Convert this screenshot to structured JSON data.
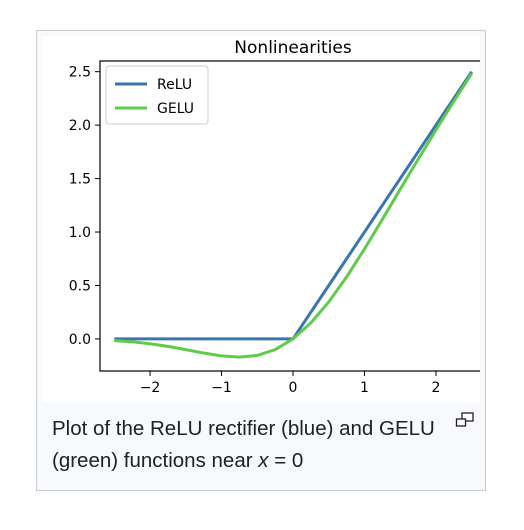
{
  "chart_data": {
    "type": "line",
    "title": "Nonlinearities",
    "xlabel": "",
    "ylabel": "",
    "xlim": [
      -2.7,
      2.7
    ],
    "ylim": [
      -0.3,
      2.6
    ],
    "xticks": [
      -2,
      -1,
      0,
      1,
      2
    ],
    "xtick_labels": [
      "−2",
      "−1",
      "0",
      "1",
      "2"
    ],
    "yticks": [
      0.0,
      0.5,
      1.0,
      1.5,
      2.0,
      2.5
    ],
    "ytick_labels": [
      "0.0",
      "0.5",
      "1.0",
      "1.5",
      "2.0",
      "2.5"
    ],
    "grid": false,
    "legend_position": "top-left",
    "series": [
      {
        "name": "ReLU",
        "color": "#3a75ad",
        "x": [
          -2.5,
          -2.0,
          -1.5,
          -1.0,
          -0.75,
          -0.5,
          -0.25,
          0.0,
          0.25,
          0.5,
          0.75,
          1.0,
          1.5,
          2.0,
          2.5
        ],
        "y": [
          0.0,
          0.0,
          0.0,
          0.0,
          0.0,
          0.0,
          0.0,
          0.0,
          0.25,
          0.5,
          0.75,
          1.0,
          1.5,
          2.0,
          2.5
        ]
      },
      {
        "name": "GELU",
        "color": "#5ecc48",
        "x": [
          -2.5,
          -2.25,
          -2.0,
          -1.75,
          -1.5,
          -1.25,
          -1.0,
          -0.75,
          -0.5,
          -0.25,
          0.0,
          0.25,
          0.5,
          0.75,
          1.0,
          1.25,
          1.5,
          1.75,
          2.0,
          2.25,
          2.5
        ],
        "y": [
          -0.016,
          -0.027,
          -0.045,
          -0.07,
          -0.1,
          -0.132,
          -0.159,
          -0.17,
          -0.154,
          -0.1,
          0.0,
          0.15,
          0.346,
          0.58,
          0.841,
          1.118,
          1.4,
          1.68,
          1.955,
          2.223,
          2.484
        ]
      }
    ]
  },
  "caption": {
    "before_var": "Plot of the ReLU rectifier (blue) and GELU (green) functions near ",
    "variable": "x",
    "after_var": " = 0"
  },
  "icons": {
    "enlarge": "magnify-clip-icon"
  }
}
